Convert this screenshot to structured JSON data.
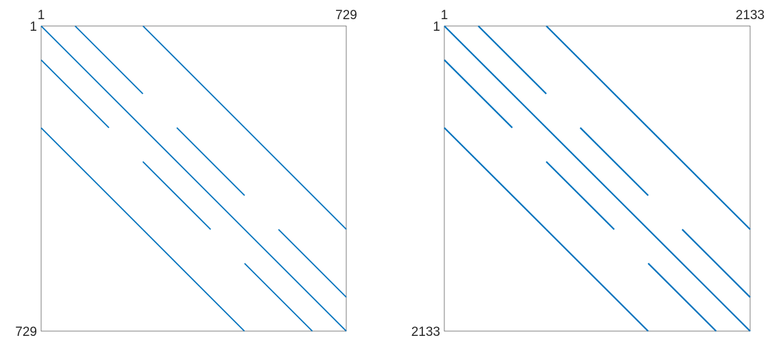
{
  "chart_data": [
    {
      "type": "spy",
      "n": 729,
      "xlim": [
        1,
        729
      ],
      "ylim": [
        1,
        729
      ],
      "x_tick_labels": [
        "1",
        "729"
      ],
      "y_tick_labels": [
        "1",
        "729"
      ],
      "line_color": "#0072BD",
      "diagonals": [
        {
          "offset": 0,
          "rows": [
            1,
            729
          ]
        },
        {
          "offset": 81,
          "rows": [
            1,
            648
          ]
        },
        {
          "offset": 243,
          "rows": [
            1,
            486
          ]
        },
        {
          "offset": -81,
          "rows": [
            82,
            729
          ]
        },
        {
          "offset": -243,
          "rows": [
            244,
            729
          ]
        }
      ]
    },
    {
      "type": "spy",
      "n": 2133,
      "xlim": [
        1,
        2133
      ],
      "ylim": [
        1,
        2133
      ],
      "x_tick_labels": [
        "1",
        "2133"
      ],
      "y_tick_labels": [
        "1",
        "2133"
      ],
      "line_color": "#0072BD",
      "diagonals": [
        {
          "offset": 0,
          "rows": [
            1,
            2133
          ]
        },
        {
          "offset": 237,
          "rows": [
            1,
            1896
          ]
        },
        {
          "offset": 711,
          "rows": [
            1,
            1422
          ]
        },
        {
          "offset": -237,
          "rows": [
            238,
            2133
          ]
        },
        {
          "offset": -711,
          "rows": [
            712,
            2133
          ]
        }
      ]
    }
  ]
}
